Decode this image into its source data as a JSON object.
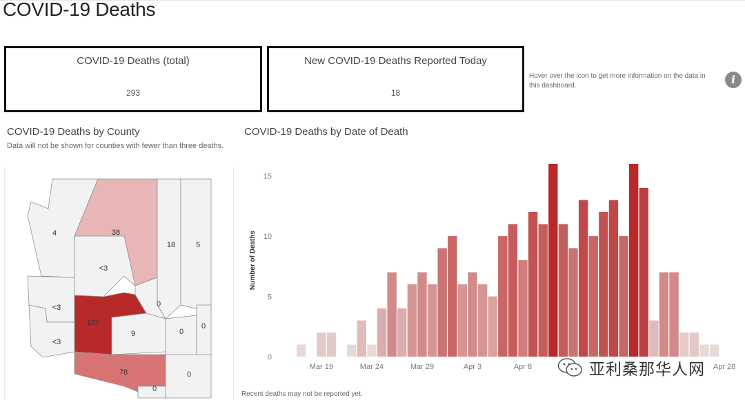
{
  "page": {
    "title": "COVID-19 Deaths"
  },
  "kpis": {
    "total": {
      "label": "COVID-19 Deaths (total)",
      "value": "293"
    },
    "today": {
      "label": "New COVID-19 Deaths Reported Today",
      "value": "18"
    }
  },
  "info": {
    "text": "Hover over the icon to get more information on the data in this dashboard.",
    "icon": "info-icon"
  },
  "county_map": {
    "title": "COVID-19 Deaths by County",
    "note": "Data will not be shown for counties with fewer than three deaths.",
    "counties": [
      {
        "value": "4",
        "deaths": 4
      },
      {
        "value": "38",
        "deaths": 38
      },
      {
        "value": "18",
        "deaths": 18
      },
      {
        "value": "5",
        "deaths": 5
      },
      {
        "value": "<3",
        "deaths": null
      },
      {
        "value": "<3",
        "deaths": null
      },
      {
        "value": "137",
        "deaths": 137
      },
      {
        "value": "0",
        "deaths": 0
      },
      {
        "value": "9",
        "deaths": 9
      },
      {
        "value": "<3",
        "deaths": null
      },
      {
        "value": "0",
        "deaths": 0
      },
      {
        "value": "0",
        "deaths": 0
      },
      {
        "value": "78",
        "deaths": 78
      },
      {
        "value": "0",
        "deaths": 0
      },
      {
        "value": "0",
        "deaths": 0
      }
    ],
    "colors": {
      "none": "#f2f2f2",
      "low": "#e8b6b6",
      "mid": "#d97474",
      "high": "#b82a2a"
    }
  },
  "chart_data": {
    "type": "bar",
    "title": "COVID-19 Deaths by Date of Death",
    "ylabel": "Number of Deaths",
    "ylim": [
      0,
      16
    ],
    "yticks": [
      0,
      5,
      10,
      15
    ],
    "dates": [
      "Mar 17",
      "Mar 18",
      "Mar 19",
      "Mar 20",
      "Mar 21",
      "Mar 22",
      "Mar 23",
      "Mar 24",
      "Mar 25",
      "Mar 26",
      "Mar 27",
      "Mar 28",
      "Mar 29",
      "Mar 30",
      "Mar 31",
      "Apr 1",
      "Apr 2",
      "Apr 3",
      "Apr 4",
      "Apr 5",
      "Apr 6",
      "Apr 7",
      "Apr 8",
      "Apr 9",
      "Apr 10",
      "Apr 11",
      "Apr 12",
      "Apr 13",
      "Apr 14",
      "Apr 15",
      "Apr 16",
      "Apr 17",
      "Apr 18",
      "Apr 19",
      "Apr 20",
      "Apr 21",
      "Apr 22",
      "Apr 23",
      "Apr 24",
      "Apr 25",
      "Apr 26",
      "Apr 27",
      "Apr 28"
    ],
    "values": [
      1,
      0,
      2,
      2,
      0,
      1,
      3,
      1,
      4,
      7,
      4,
      6,
      7,
      6,
      9,
      10,
      6,
      7,
      6,
      5,
      10,
      11,
      8,
      12,
      11,
      16,
      11,
      9,
      13,
      10,
      12,
      13,
      10,
      16,
      14,
      3,
      7,
      7,
      2,
      2,
      1,
      1,
      0
    ],
    "xtick_labels": [
      "Mar 19",
      "Mar 24",
      "Mar 29",
      "Apr 3",
      "Apr 8",
      "Apr 28"
    ],
    "color_scale": [
      "#eeeeee",
      "#b82a2a"
    ],
    "footnote": "Recent deaths may not be reported yet."
  },
  "watermark": {
    "text": "亚利桑那华人网",
    "icon": "wechat-icon"
  }
}
